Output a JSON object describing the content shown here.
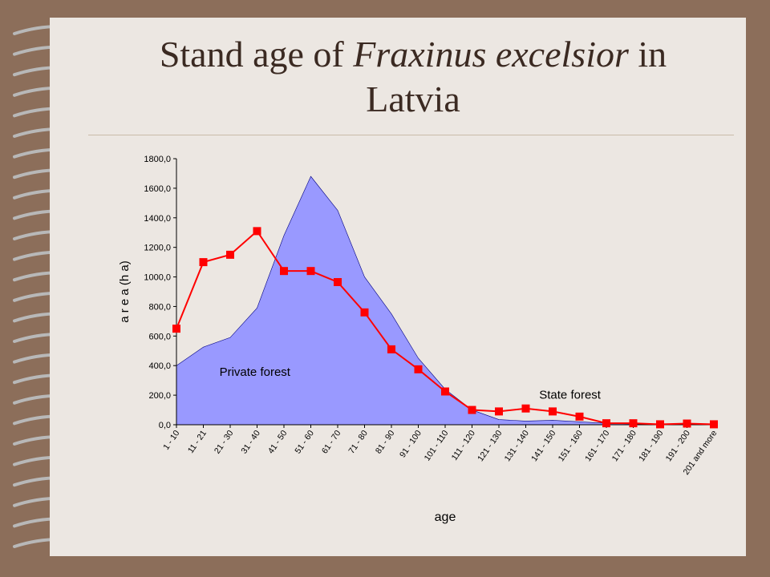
{
  "slide": {
    "title_line1_prefix": "Stand age of ",
    "title_italic": "Fraxinus excelsior",
    "title_line1_suffix": " in",
    "title_line2": "Latvia"
  },
  "colors": {
    "background": "#8c6e5a",
    "slide": "#ece7e2",
    "title_text": "#3b2a22",
    "private_fill": "#9999ff",
    "state_line": "#ff0000"
  },
  "chart_data": {
    "type": "line",
    "xlabel": "age",
    "ylabel": "a r e a (h a)",
    "ylim": [
      0,
      1800
    ],
    "yticks": [
      0,
      200,
      400,
      600,
      800,
      1000,
      1200,
      1400,
      1600,
      1800
    ],
    "ytick_labels": [
      "0,0",
      "200,0",
      "400,0",
      "600,0",
      "800,0",
      "1000,0",
      "1200,0",
      "1400,0",
      "1600,0",
      "1800,0"
    ],
    "grid": false,
    "categories": [
      "1 - 10",
      "11 - 21",
      "21 - 30",
      "31 - 40",
      "41 - 50",
      "51 - 60",
      "61 - 70",
      "71 - 80",
      "81 - 90",
      "91 - 100",
      "101 - 110",
      "111 - 120",
      "121 - 130",
      "131 - 140",
      "141 - 150",
      "151 - 160",
      "161 - 170",
      "171 - 180",
      "181 - 190",
      "191 - 200",
      "201 and more"
    ],
    "series": [
      {
        "name": "Private forest",
        "type": "area",
        "color": "#9999ff",
        "values": [
          400,
          525,
          590,
          790,
          1280,
          1680,
          1450,
          1000,
          750,
          450,
          240,
          100,
          35,
          25,
          30,
          20,
          10,
          5,
          5,
          3,
          2
        ]
      },
      {
        "name": "State forest",
        "type": "line",
        "color": "#ff0000",
        "values": [
          650,
          1100,
          1150,
          1310,
          1040,
          1040,
          965,
          760,
          510,
          375,
          225,
          100,
          90,
          110,
          90,
          55,
          10,
          10,
          3,
          8,
          3
        ]
      }
    ],
    "annotations": [
      "Private forest",
      "State forest"
    ]
  }
}
